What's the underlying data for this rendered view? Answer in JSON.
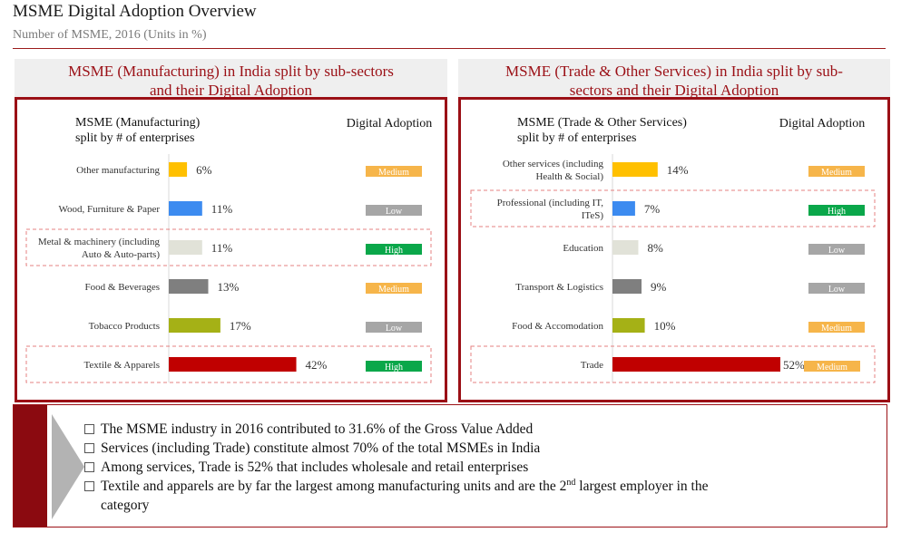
{
  "header": {
    "title": "MSME Digital Adoption Overview",
    "subtitle": "Number of MSME, 2016 (Units in %)"
  },
  "colors": {
    "accent": "#9b1016",
    "high": "#0aa74a",
    "medium": "#f6b54a",
    "low": "#a6a6a6"
  },
  "chart_data": [
    {
      "type": "bar",
      "orientation": "horizontal",
      "title": "MSME (Manufacturing) in India split by sub-sectors and their Digital Adoption",
      "col_left_header": "MSME (Manufacturing) split by # of enterprises",
      "col_right_header": "Digital Adoption",
      "categories": [
        "Other manufacturing",
        "Wood, Furniture & Paper",
        "Metal & machinery (including Auto & Auto-parts)",
        "Food & Beverages",
        "Tobacco Products",
        "Textile & Apparels"
      ],
      "values": [
        6,
        11,
        11,
        13,
        17,
        42
      ],
      "value_labels": [
        "6%",
        "11%",
        "11%",
        "13%",
        "17%",
        "42%"
      ],
      "bar_colors": [
        "#ffc000",
        "#3c8bf0",
        "#e1e2d8",
        "#7f7f7f",
        "#a5b116",
        "#c00000"
      ],
      "adoption": [
        "Medium",
        "Low",
        "High",
        "Medium",
        "Low",
        "High"
      ],
      "highlighted": [
        false,
        false,
        true,
        false,
        false,
        true
      ]
    },
    {
      "type": "bar",
      "orientation": "horizontal",
      "title": "MSME (Trade & Other Services) in India split by sub-sectors and their Digital Adoption",
      "col_left_header": "MSME (Trade & Other Services) split by # of enterprises",
      "col_right_header": "Digital Adoption",
      "categories": [
        "Other services (including Health & Social)",
        "Professional (including IT, ITeS)",
        "Education",
        "Transport & Logistics",
        "Food & Accomodation",
        "Trade"
      ],
      "values": [
        14,
        7,
        8,
        9,
        10,
        52
      ],
      "value_labels": [
        "14%",
        "7%",
        "8%",
        "9%",
        "10%",
        "52%"
      ],
      "bar_colors": [
        "#ffc000",
        "#3c8bf0",
        "#e1e2d8",
        "#7f7f7f",
        "#a5b116",
        "#c00000"
      ],
      "adoption": [
        "Medium",
        "High",
        "Low",
        "Low",
        "Medium",
        "Medium"
      ],
      "highlighted": [
        false,
        true,
        false,
        false,
        false,
        true
      ]
    }
  ],
  "panels": {
    "left_title_line1": "MSME (Manufacturing) in India split by sub-sectors",
    "left_title_line2": "and their Digital Adoption",
    "right_title_line1": "MSME (Trade & Other Services) in India split by sub-",
    "right_title_line2": "sectors and their Digital Adoption",
    "left_header_line1": "MSME (Manufacturing)",
    "left_header_line2": "split by # of enterprises",
    "right_header_line1": "MSME (Trade & Other Services)",
    "right_header_line2": "split by # of enterprises",
    "left_cat_lines": [
      [
        "Other manufacturing"
      ],
      [
        "Wood, Furniture & Paper"
      ],
      [
        "Metal & machinery (including",
        "Auto & Auto-parts)"
      ],
      [
        "Food & Beverages"
      ],
      [
        "Tobacco Products"
      ],
      [
        "Textile & Apparels"
      ]
    ],
    "right_cat_lines": [
      [
        "Other services (including",
        "Health & Social)"
      ],
      [
        "Professional (including IT,",
        "ITeS)"
      ],
      [
        "Education"
      ],
      [
        "Transport & Logistics"
      ],
      [
        "Food & Accomodation"
      ],
      [
        "Trade"
      ]
    ]
  },
  "callout": {
    "bullet1": "The MSME industry in 2016 contributed to 31.6% of the Gross Value Added",
    "bullet2": "Services (including Trade) constitute almost 70% of  the total MSMEs  in  India",
    "bullet3": "Among services, Trade is 52% that includes wholesale and retail enterprises",
    "bullet4_part1": "Textile and apparels are by far the largest among manufacturing units and are the 2",
    "bullet4_sup": "nd",
    "bullet4_part2": " largest employer in the",
    "bullet4_part3": "category"
  }
}
